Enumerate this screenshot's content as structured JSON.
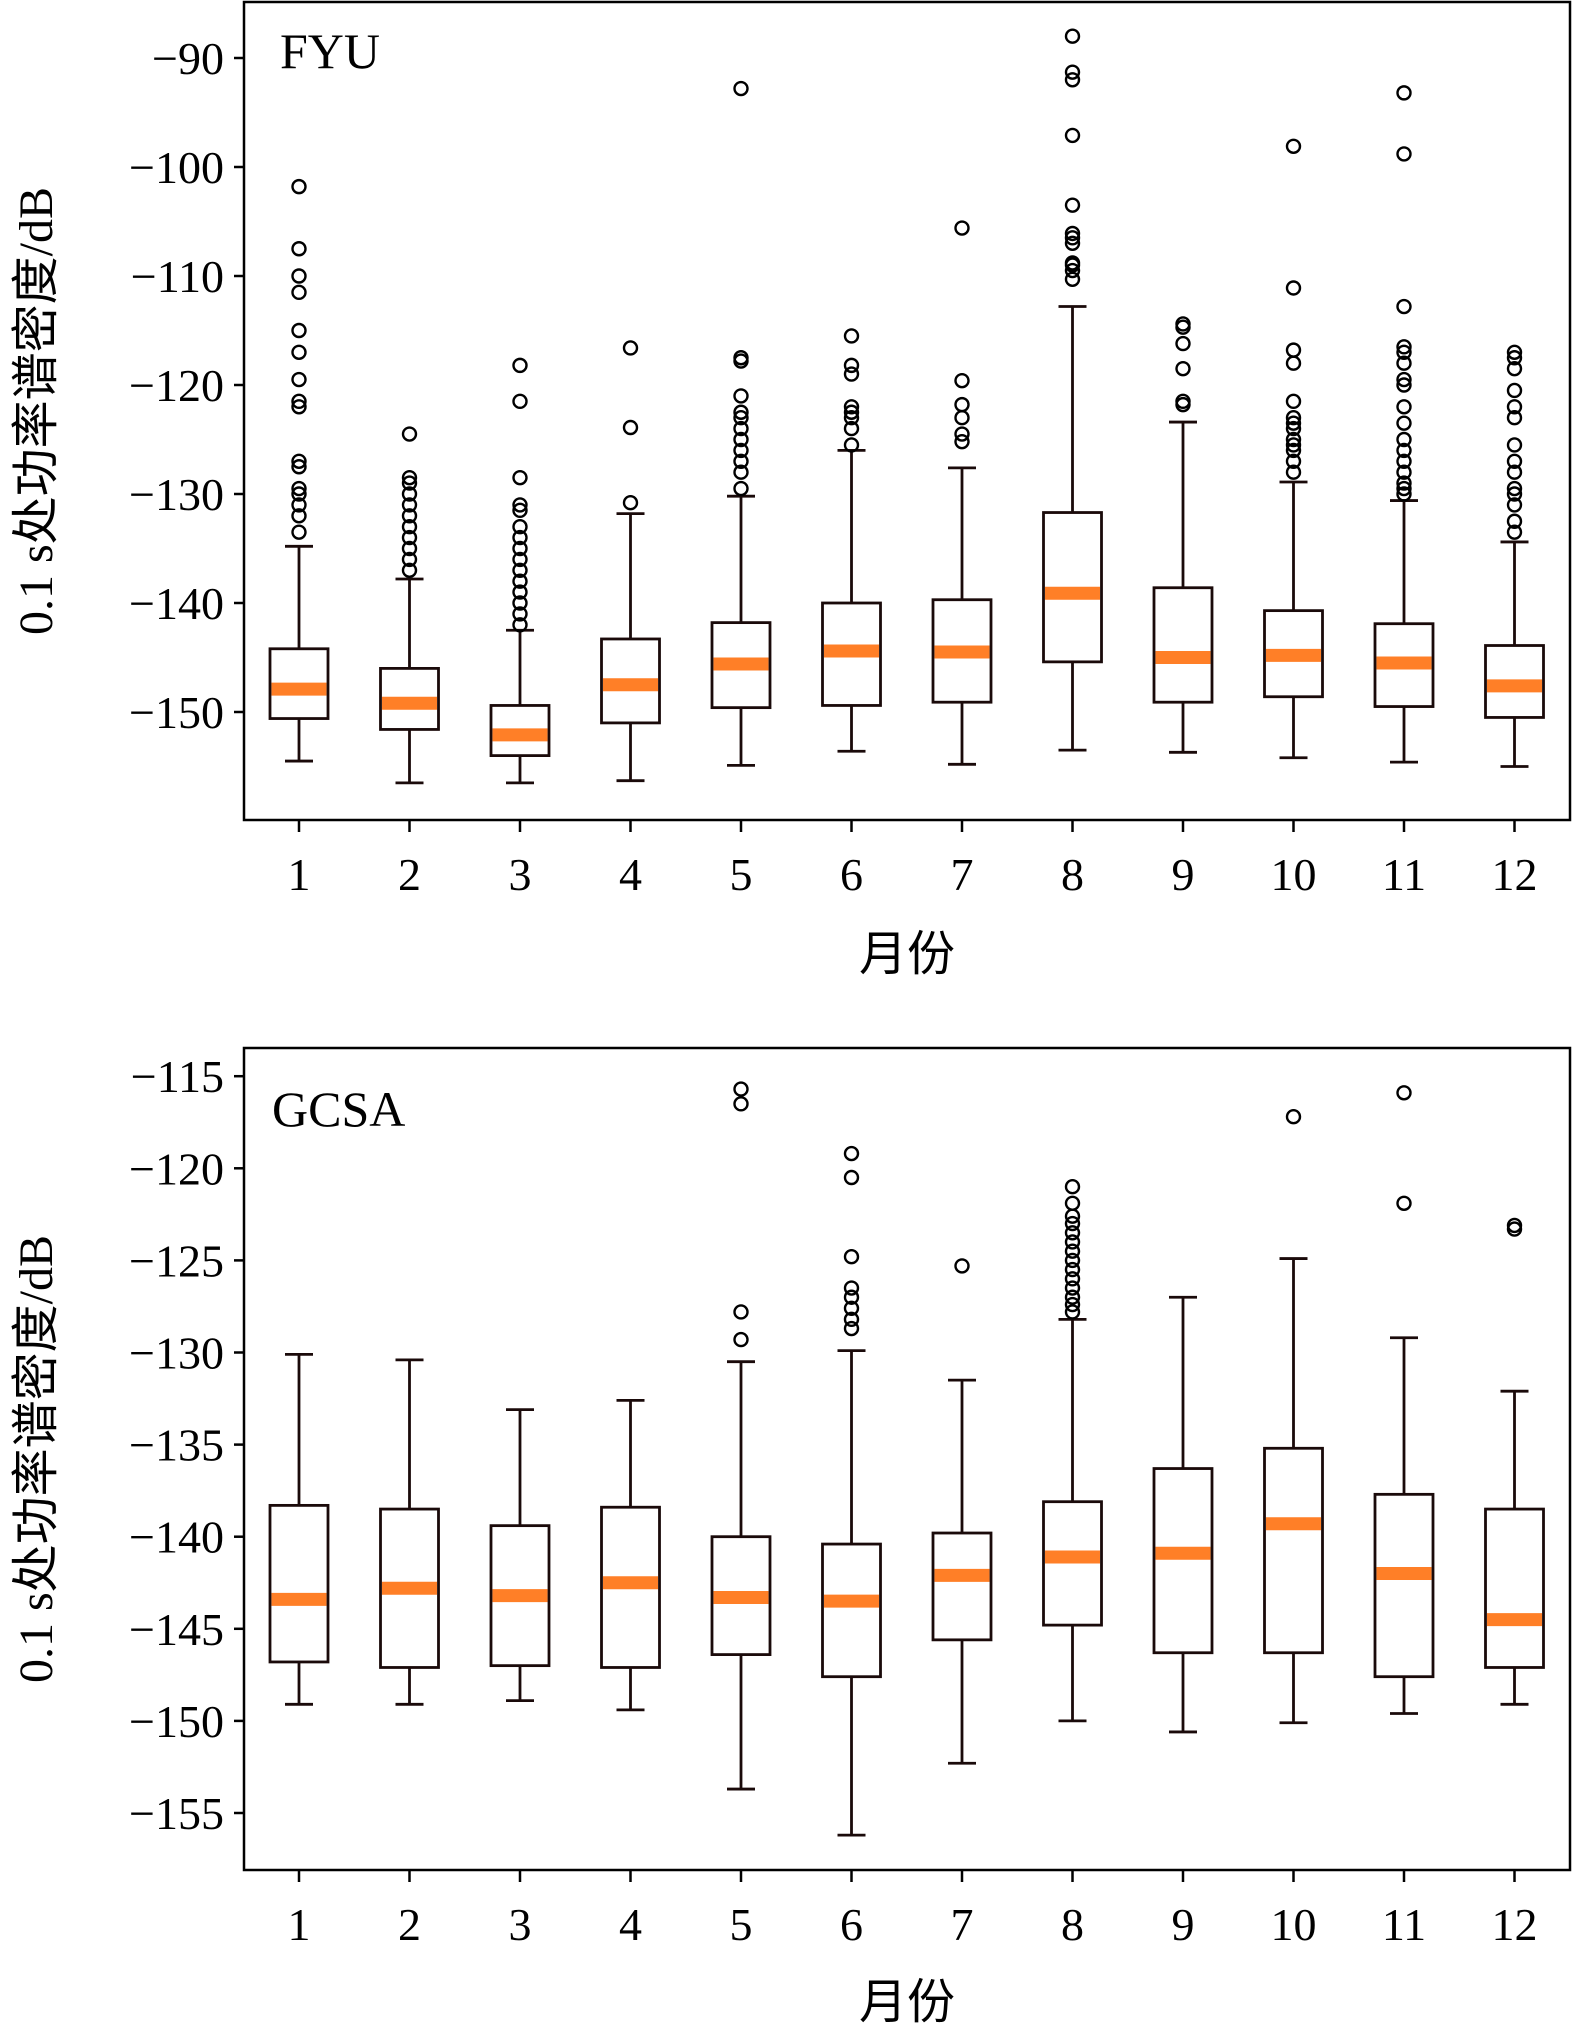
{
  "colors": {
    "median": "#ff7f27",
    "box": "#000000",
    "background": "#ffffff"
  },
  "chart_data": [
    {
      "type": "boxplot",
      "station_label": "FYU",
      "xlabel": "月份",
      "ylabel": "0.1 s处功率谱密度/dB",
      "ylim": [
        -160,
        -85
      ],
      "yticks": [
        -150,
        -140,
        -130,
        -120,
        -110,
        -100,
        -90
      ],
      "ytick_labels": [
        "−150",
        "−140",
        "−130",
        "−120",
        "−110",
        "−100",
        "−90"
      ],
      "categories": [
        "1",
        "2",
        "3",
        "4",
        "5",
        "6",
        "7",
        "8",
        "9",
        "10",
        "11",
        "12"
      ],
      "boxes": [
        {
          "month": "1",
          "whisker_low": -154.5,
          "q1": -150.6,
          "median": -147.9,
          "q3": -144.2,
          "whisker_high": -134.8,
          "outliers": [
            -133.5,
            -132,
            -131,
            -130,
            -129.5,
            -127.5,
            -127,
            -122,
            -121.5,
            -119.5,
            -117,
            -115,
            -111.5,
            -110,
            -107.5,
            -101.8
          ]
        },
        {
          "month": "2",
          "whisker_low": -156.5,
          "q1": -151.6,
          "median": -149.2,
          "q3": -146,
          "whisker_high": -137.8,
          "outliers": [
            -137,
            -136,
            -135,
            -134,
            -133,
            -132,
            -131,
            -130,
            -129,
            -128.5,
            -124.5
          ]
        },
        {
          "month": "3",
          "whisker_low": -156.5,
          "q1": -154,
          "median": -152.1,
          "q3": -149.4,
          "whisker_high": -142.5,
          "outliers": [
            -142,
            -141,
            -140,
            -139,
            -138,
            -137,
            -136,
            -135,
            -134,
            -133,
            -131.5,
            -131,
            -128.5,
            -121.5,
            -118.2
          ]
        },
        {
          "month": "4",
          "whisker_low": -156.3,
          "q1": -151,
          "median": -147.5,
          "q3": -143.3,
          "whisker_high": -131.8,
          "outliers": [
            -130.8,
            -123.9,
            -116.6
          ]
        },
        {
          "month": "5",
          "whisker_low": -154.9,
          "q1": -149.6,
          "median": -145.6,
          "q3": -141.8,
          "whisker_high": -130.2,
          "outliers": [
            -129.5,
            -128,
            -127,
            -126,
            -125,
            -124,
            -123,
            -122.5,
            -121,
            -117.8,
            -117.5,
            -92.8
          ]
        },
        {
          "month": "6",
          "whisker_low": -153.6,
          "q1": -149.4,
          "median": -144.4,
          "q3": -140,
          "whisker_high": -126,
          "outliers": [
            -125.5,
            -124,
            -123,
            -122.5,
            -122,
            -119,
            -118.2,
            -115.5
          ]
        },
        {
          "month": "7",
          "whisker_low": -154.8,
          "q1": -149.1,
          "median": -144.5,
          "q3": -139.7,
          "whisker_high": -127.6,
          "outliers": [
            -125.2,
            -124.5,
            -123,
            -121.8,
            -119.6,
            -105.6
          ]
        },
        {
          "month": "8",
          "whisker_low": -153.5,
          "q1": -145.4,
          "median": -139.1,
          "q3": -131.7,
          "whisker_high": -112.8,
          "outliers": [
            -110.3,
            -109.5,
            -109,
            -108.8,
            -107,
            -106.5,
            -106.1,
            -103.5,
            -97.1,
            -92,
            -91.3,
            -88
          ]
        },
        {
          "month": "9",
          "whisker_low": -153.7,
          "q1": -149.1,
          "median": -145,
          "q3": -138.6,
          "whisker_high": -123.4,
          "outliers": [
            -121.8,
            -121.5,
            -118.5,
            -116.2,
            -114.7,
            -114.4
          ]
        },
        {
          "month": "10",
          "whisker_low": -154.2,
          "q1": -148.6,
          "median": -144.8,
          "q3": -140.7,
          "whisker_high": -128.9,
          "outliers": [
            -128,
            -127,
            -126,
            -125.5,
            -125,
            -124,
            -123.5,
            -123,
            -121.5,
            -118,
            -116.8,
            -111.1,
            -98.1
          ]
        },
        {
          "month": "11",
          "whisker_low": -154.6,
          "q1": -149.5,
          "median": -145.5,
          "q3": -141.9,
          "whisker_high": -130.6,
          "outliers": [
            -130,
            -129.5,
            -129,
            -128,
            -127,
            -126,
            -125,
            -123.5,
            -122,
            -120,
            -119.5,
            -118,
            -117,
            -116.5,
            -112.8,
            -98.8,
            -93.2
          ]
        },
        {
          "month": "12",
          "whisker_low": -155,
          "q1": -150.5,
          "median": -147.6,
          "q3": -143.9,
          "whisker_high": -134.4,
          "outliers": [
            -133.5,
            -132.5,
            -131,
            -130,
            -129.5,
            -128,
            -127,
            -125.5,
            -123,
            -122,
            -120.5,
            -118.5,
            -117.5,
            -117
          ]
        }
      ]
    },
    {
      "type": "boxplot",
      "station_label": "GCSA",
      "xlabel": "月份",
      "ylabel": "0.1 s处功率谱密度/dB",
      "ylim": [
        -158,
        -114
      ],
      "yticks": [
        -155,
        -150,
        -145,
        -140,
        -135,
        -130,
        -125,
        -120,
        -115
      ],
      "ytick_labels": [
        "−155",
        "−150",
        "−145",
        "−140",
        "−135",
        "−130",
        "−125",
        "−120",
        "−115"
      ],
      "categories": [
        "1",
        "2",
        "3",
        "4",
        "5",
        "6",
        "7",
        "8",
        "9",
        "10",
        "11",
        "12"
      ],
      "boxes": [
        {
          "month": "1",
          "whisker_low": -149.1,
          "q1": -146.8,
          "median": -143.4,
          "q3": -138.3,
          "whisker_high": -130.1,
          "outliers": []
        },
        {
          "month": "2",
          "whisker_low": -149.1,
          "q1": -147.1,
          "median": -142.8,
          "q3": -138.5,
          "whisker_high": -130.4,
          "outliers": []
        },
        {
          "month": "3",
          "whisker_low": -148.9,
          "q1": -147,
          "median": -143.2,
          "q3": -139.4,
          "whisker_high": -133.1,
          "outliers": []
        },
        {
          "month": "4",
          "whisker_low": -149.4,
          "q1": -147.1,
          "median": -142.5,
          "q3": -138.4,
          "whisker_high": -132.6,
          "outliers": []
        },
        {
          "month": "5",
          "whisker_low": -153.7,
          "q1": -146.4,
          "median": -143.3,
          "q3": -140,
          "whisker_high": -130.5,
          "outliers": [
            -129.3,
            -127.8,
            -116.5,
            -115.7
          ]
        },
        {
          "month": "6",
          "whisker_low": -156.2,
          "q1": -147.6,
          "median": -143.5,
          "q3": -140.4,
          "whisker_high": -129.9,
          "outliers": [
            -128.7,
            -128.2,
            -127.6,
            -127,
            -126.5,
            -124.8,
            -120.5,
            -119.2
          ]
        },
        {
          "month": "7",
          "whisker_low": -152.3,
          "q1": -145.6,
          "median": -142.1,
          "q3": -139.8,
          "whisker_high": -131.5,
          "outliers": [
            -125.3
          ]
        },
        {
          "month": "8",
          "whisker_low": -150,
          "q1": -144.8,
          "median": -141.1,
          "q3": -138.1,
          "whisker_high": -128.2,
          "outliers": [
            -127.8,
            -127.4,
            -127,
            -126.5,
            -126,
            -125.5,
            -125,
            -124.5,
            -124,
            -123.5,
            -123,
            -122.6,
            -121.9,
            -121
          ]
        },
        {
          "month": "9",
          "whisker_low": -150.6,
          "q1": -146.3,
          "median": -140.9,
          "q3": -136.3,
          "whisker_high": -127,
          "outliers": []
        },
        {
          "month": "10",
          "whisker_low": -150.1,
          "q1": -146.3,
          "median": -139.3,
          "q3": -135.2,
          "whisker_high": -124.9,
          "outliers": [
            -117.2
          ]
        },
        {
          "month": "11",
          "whisker_low": -149.6,
          "q1": -147.6,
          "median": -142,
          "q3": -137.7,
          "whisker_high": -129.2,
          "outliers": [
            -121.9,
            -115.9
          ]
        },
        {
          "month": "12",
          "whisker_low": -149.1,
          "q1": -147.1,
          "median": -144.5,
          "q3": -138.5,
          "whisker_high": -132.1,
          "outliers": [
            -123.3,
            -123.1
          ]
        }
      ]
    }
  ]
}
